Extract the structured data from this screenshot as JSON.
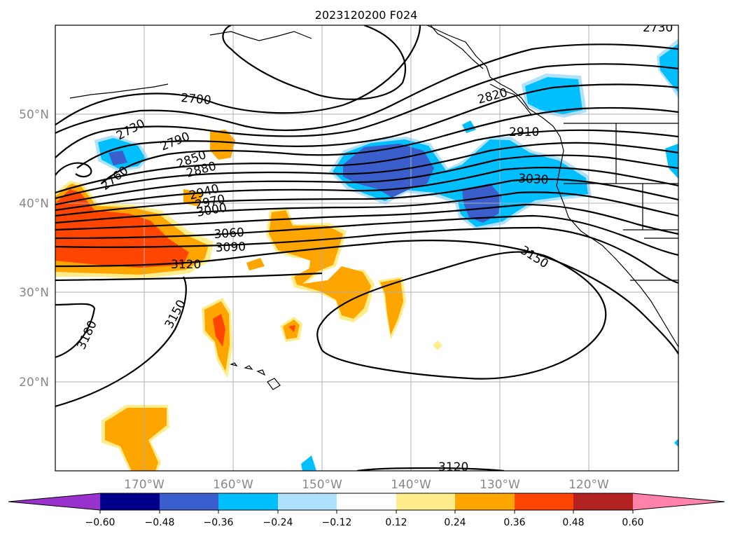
{
  "title": "2023120200 F024",
  "lat_labels": [
    "50°N",
    "40°N",
    "30°N",
    "20°N"
  ],
  "lon_labels": [
    "170°W",
    "160°W",
    "150°W",
    "140°W",
    "130°W",
    "120°W"
  ],
  "colorbar": {
    "colors": [
      "#9932cc",
      "#00008b",
      "#3a5fcd",
      "#00bfff",
      "#b0e2ff",
      "#ffffff",
      "#ffec8b",
      "#ffa500",
      "#ff4500",
      "#b22222",
      "#ff82ab"
    ],
    "tick_labels": [
      "−0.60",
      "−0.48",
      "−0.36",
      "−0.24",
      "−0.12",
      "0.12",
      "0.24",
      "0.36",
      "0.48",
      "0.60"
    ]
  },
  "contour_labels": {
    "c2700": "2700",
    "c2730a": "2730",
    "c2730b": "2730",
    "c2760": "2760",
    "c2790": "2790",
    "c2820": "2820",
    "c2850": "2850",
    "c2880": "2880",
    "c2910": "2910",
    "c2940": "2940",
    "c2970": "2970",
    "c3000": "3000",
    "c3030": "3030",
    "c3060": "3060",
    "c3090": "3090",
    "c3120a": "3120",
    "c3120b": "3120",
    "c3150a": "3150",
    "c3150b": "3150",
    "c3180": "3180"
  }
}
